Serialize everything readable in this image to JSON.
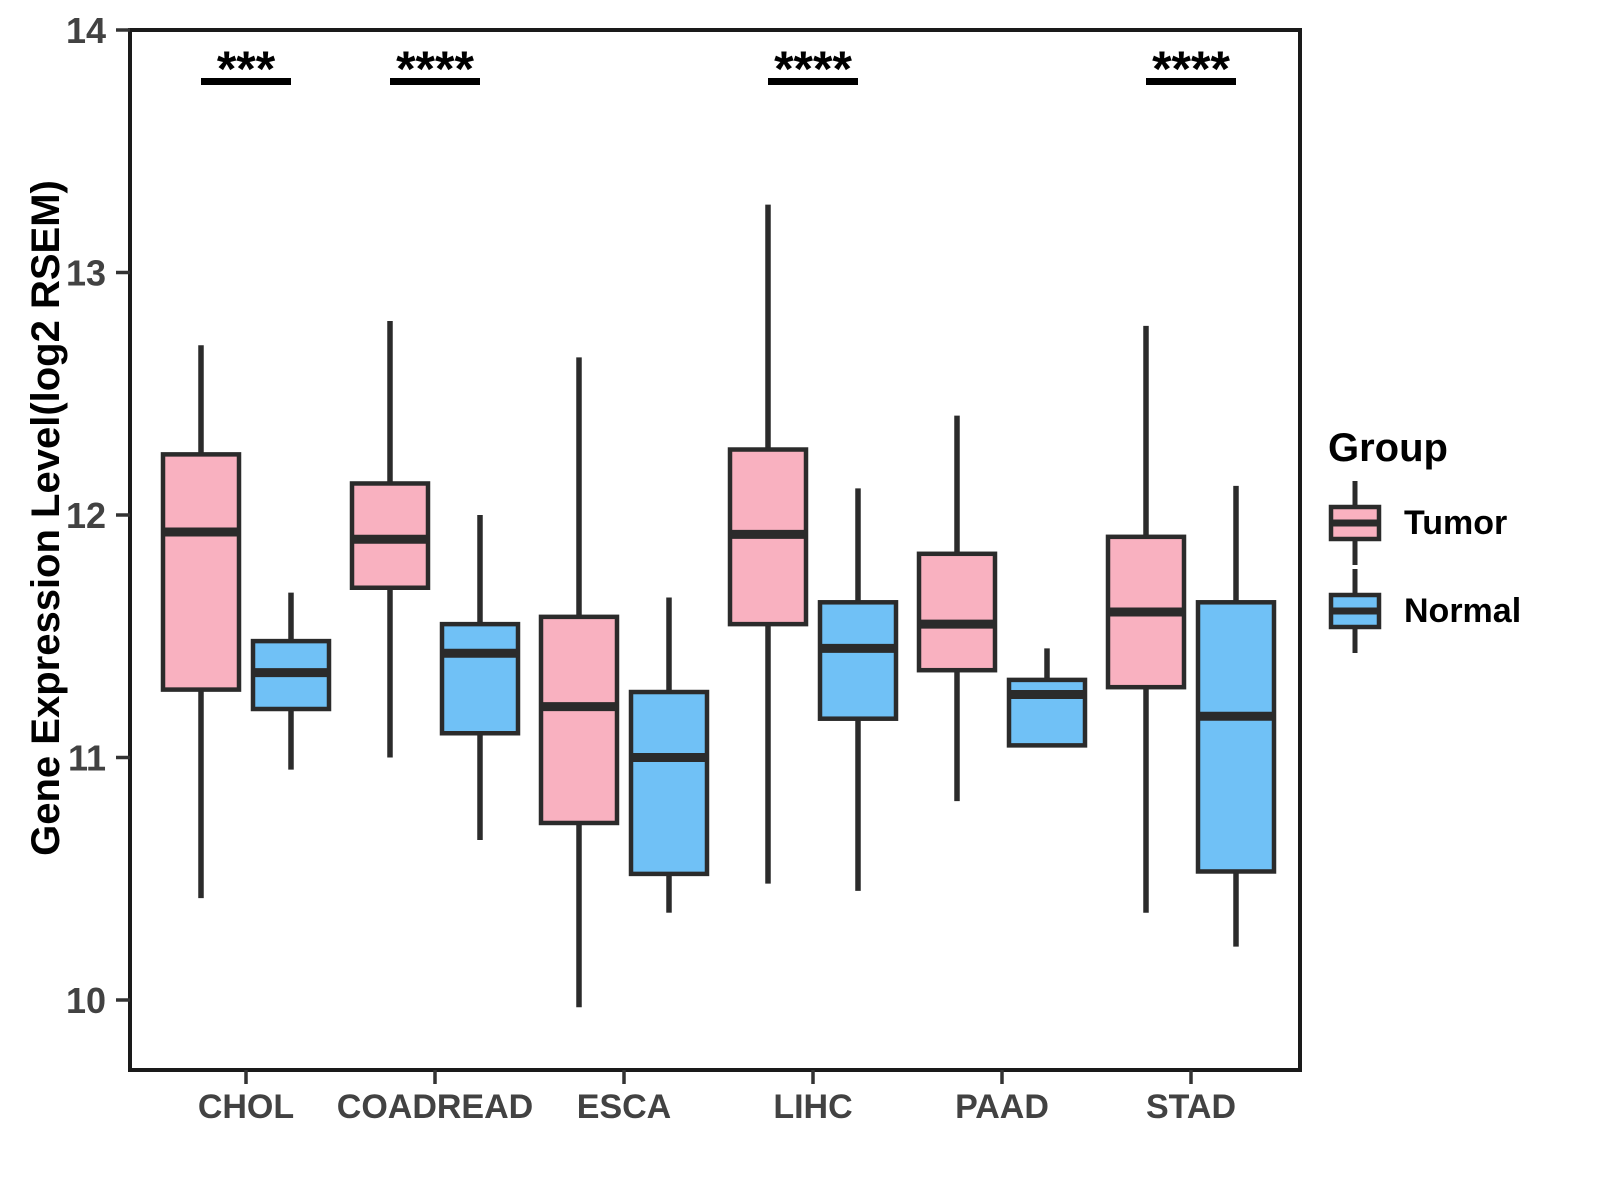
{
  "chart_data": {
    "type": "boxplot",
    "title": "",
    "xlabel": "",
    "ylabel": "Gene Expression Level(log2 RSEM)",
    "ylim": [
      9.71,
      14
    ],
    "yticks": [
      10,
      11,
      12,
      13,
      14
    ],
    "grid": false,
    "legend_position": "right",
    "categories": [
      "CHOL",
      "COADREAD",
      "ESCA",
      "LIHC",
      "PAAD",
      "STAD"
    ],
    "series": [
      {
        "name": "Tumor",
        "color": "#F9B1C0",
        "boxes": [
          {
            "whisker_low": 10.42,
            "q1": 11.28,
            "median": 11.93,
            "q3": 12.25,
            "whisker_high": 12.7
          },
          {
            "whisker_low": 11.0,
            "q1": 11.7,
            "median": 11.9,
            "q3": 12.13,
            "whisker_high": 12.8
          },
          {
            "whisker_low": 9.97,
            "q1": 10.73,
            "median": 11.21,
            "q3": 11.58,
            "whisker_high": 12.65
          },
          {
            "whisker_low": 10.48,
            "q1": 11.55,
            "median": 11.92,
            "q3": 12.27,
            "whisker_high": 13.28
          },
          {
            "whisker_low": 10.82,
            "q1": 11.36,
            "median": 11.55,
            "q3": 11.84,
            "whisker_high": 12.41
          },
          {
            "whisker_low": 10.36,
            "q1": 11.29,
            "median": 11.6,
            "q3": 11.91,
            "whisker_high": 12.78
          }
        ]
      },
      {
        "name": "Normal",
        "color": "#70C1F6",
        "boxes": [
          {
            "whisker_low": 10.95,
            "q1": 11.2,
            "median": 11.35,
            "q3": 11.48,
            "whisker_high": 11.68
          },
          {
            "whisker_low": 10.66,
            "q1": 11.1,
            "median": 11.43,
            "q3": 11.55,
            "whisker_high": 12.0
          },
          {
            "whisker_low": 10.36,
            "q1": 10.52,
            "median": 11.0,
            "q3": 11.27,
            "whisker_high": 11.66
          },
          {
            "whisker_low": 10.45,
            "q1": 11.16,
            "median": 11.45,
            "q3": 11.64,
            "whisker_high": 12.11
          },
          {
            "whisker_low": 11.05,
            "q1": 11.05,
            "median": 11.26,
            "q3": 11.32,
            "whisker_high": 11.45
          },
          {
            "whisker_low": 10.22,
            "q1": 10.53,
            "median": 11.17,
            "q3": 11.64,
            "whisker_high": 12.12
          }
        ]
      }
    ],
    "significance": [
      {
        "category": "CHOL",
        "label": "***"
      },
      {
        "category": "COADREAD",
        "label": "****"
      },
      {
        "category": "LIHC",
        "label": "****"
      },
      {
        "category": "STAD",
        "label": "****"
      }
    ]
  },
  "legend": {
    "title": "Group",
    "entries": [
      {
        "label": "Tumor",
        "color": "#F9B1C0"
      },
      {
        "label": "Normal",
        "color": "#70C1F6"
      }
    ]
  },
  "colors": {
    "tumor_fill": "#F9B1C0",
    "normal_fill": "#70C1F6",
    "box_stroke": "#2B2B2B",
    "panel_border": "#1A1A1A",
    "axis_text": "#424242",
    "annotation": "#000000",
    "background": "#FFFFFF"
  }
}
